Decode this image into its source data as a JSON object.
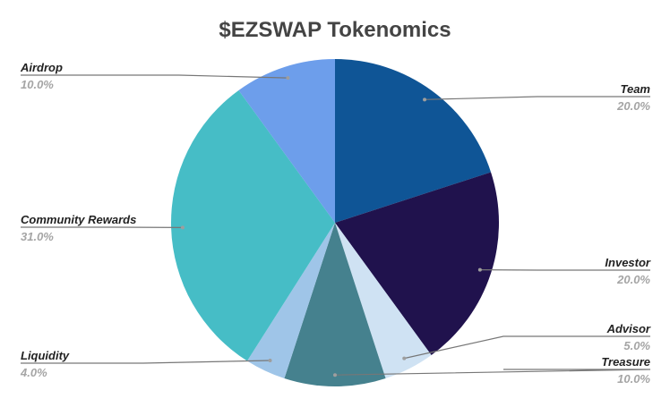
{
  "chart_data": {
    "type": "pie",
    "title": "$EZSWAP Tokenomics",
    "start_angle_deg": 0,
    "direction": "clockwise",
    "legend_position": "labeled callouts",
    "slices": [
      {
        "label": "Team",
        "value": 20.0,
        "display": "20.0%",
        "color": "#0f5596"
      },
      {
        "label": "Investor",
        "value": 20.0,
        "display": "20.0%",
        "color": "#20124d"
      },
      {
        "label": "Advisor",
        "value": 5.0,
        "display": "5.0%",
        "color": "#cfe2f3"
      },
      {
        "label": "Treasure",
        "value": 10.0,
        "display": "10.0%",
        "color": "#45818e"
      },
      {
        "label": "Liquidity",
        "value": 4.0,
        "display": "4.0%",
        "color": "#9fc5e8"
      },
      {
        "label": "Community Rewards",
        "value": 31.0,
        "display": "31.0%",
        "color": "#46bdc6"
      },
      {
        "label": "Airdrop",
        "value": 10.0,
        "display": "10.0%",
        "color": "#6d9eeb"
      }
    ]
  }
}
